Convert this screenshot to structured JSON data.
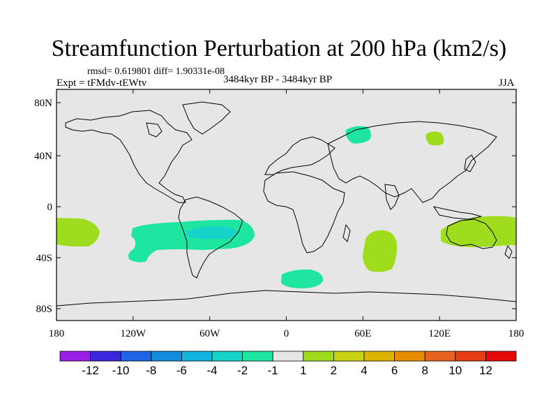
{
  "title": "Streamfunction Perturbation at 200 hPa (km2/s)",
  "stats": "rmsd= 0.619801 diff= 1.90331e-08",
  "experiment": "Expt = tFMdv-tEWtv",
  "period": "3484kyr BP - 3484kyr BP",
  "season": "JJA",
  "map": {
    "lat_ticks": [
      "80N",
      "40N",
      "0",
      "40S",
      "80S"
    ],
    "lon_ticks": [
      "180",
      "120W",
      "60W",
      "0",
      "60E",
      "120E",
      "180"
    ],
    "background_color": "#e6e6e6",
    "regions": [
      {
        "name": "central-pacific-positive",
        "value": "1 to 2",
        "color": "#a0dc1e"
      },
      {
        "name": "south-atlantic-negative",
        "value": "-1 to -2",
        "color": "#1ee6a0"
      },
      {
        "name": "south-america-core-negative",
        "value": "-2 to -4",
        "color": "#16d2c8"
      },
      {
        "name": "southern-ocean-negative",
        "value": "-1 to -2",
        "color": "#1ee6a0"
      },
      {
        "name": "indian-ocean-positive",
        "value": "1 to 2",
        "color": "#a0dc1e"
      },
      {
        "name": "australia-positive",
        "value": "1 to 2",
        "color": "#a0dc1e"
      },
      {
        "name": "siberia-negative",
        "value": "-1 to -2",
        "color": "#1ee6a0"
      },
      {
        "name": "east-asia-positive",
        "value": "1 to 2",
        "color": "#a0dc1e"
      }
    ]
  },
  "colorbar": {
    "labels": [
      "-12",
      "-10",
      "-8",
      "-6",
      "-4",
      "-2",
      "-1",
      "1",
      "2",
      "4",
      "6",
      "8",
      "10",
      "12"
    ],
    "colors": [
      "#9b1ee6",
      "#3c28dc",
      "#1e64e6",
      "#148cdc",
      "#10b4dc",
      "#16d2c8",
      "#1ee6a0",
      "#e6e6e6",
      "#a0dc1e",
      "#c8d214",
      "#dcb400",
      "#e68c00",
      "#e6641e",
      "#e63c14",
      "#e60a0a"
    ]
  }
}
